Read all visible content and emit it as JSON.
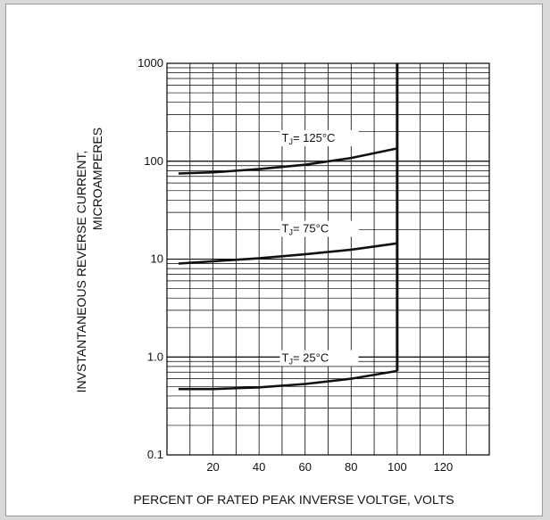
{
  "chart_data": {
    "type": "line",
    "xlabel": "PERCENT OF RATED PEAK INVERSE VOLTGE, VOLTS",
    "ylabel_line1": "INVSTANTANEOUS REVERSE CURRENT,",
    "ylabel_line2": "MICROAMPERES",
    "y_scale": "log",
    "xlim": [
      0,
      140
    ],
    "ylim": [
      0.1,
      1000
    ],
    "grid": true,
    "x_ticks": [
      "20",
      "40",
      "60",
      "80",
      "100",
      "120"
    ],
    "y_ticks": [
      "0.1",
      "1.0",
      "10",
      "100",
      "1000"
    ],
    "series": [
      {
        "name": "TJ= 125°C",
        "label_main": "T",
        "label_sub": "J",
        "label_rest": "= 125°C",
        "x": [
          5,
          20,
          40,
          60,
          80,
          100
        ],
        "y": [
          75,
          77,
          83,
          92,
          108,
          135
        ]
      },
      {
        "name": "TJ= 75°C",
        "label_main": "T",
        "label_sub": "J",
        "label_rest": "= 75°C",
        "x": [
          5,
          20,
          40,
          60,
          80,
          100
        ],
        "y": [
          9,
          9.5,
          10.2,
          11.2,
          12.5,
          14.5
        ]
      },
      {
        "name": "TJ= 25°C",
        "label_main": "T",
        "label_sub": "J",
        "label_rest": "= 25°C",
        "x": [
          5,
          20,
          40,
          60,
          80,
          100
        ],
        "y": [
          0.47,
          0.47,
          0.49,
          0.53,
          0.6,
          0.72
        ]
      }
    ],
    "vertical_limit_x": 100,
    "colors": {
      "curve": "#111111",
      "grid": "#000000",
      "page": "#ffffff"
    }
  }
}
